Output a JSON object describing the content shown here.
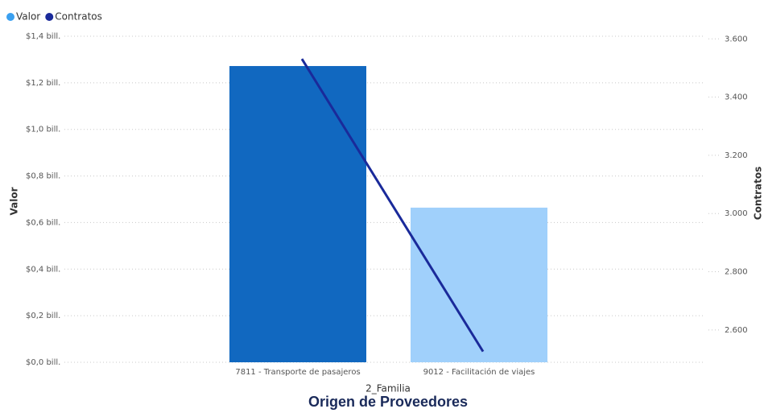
{
  "chart_data": {
    "type": "combo",
    "title": "Origen de Proveedores",
    "x_label": "2_Familia",
    "y_label": "Valor",
    "y2_label": "Contratos",
    "categories": [
      "7811 - Transporte de pasajeros",
      "9012 - Facilitación de viajes"
    ],
    "series": [
      {
        "name": "Valor",
        "type": "bar",
        "color": "#3aa0f0",
        "colors": [
          "#1168c0",
          "#a0d0fb"
        ],
        "values": [
          1.272,
          0.664
        ]
      },
      {
        "name": "Contratos",
        "type": "line",
        "axis": "y2",
        "color": "#1a2a9a",
        "values": [
          3531,
          2526
        ]
      }
    ],
    "ylim": [
      0,
      1.4
    ],
    "yticks": [
      {
        "value": 0,
        "label": "$0,0 bill."
      },
      {
        "value": 0.2,
        "label": "$0,2 bill."
      },
      {
        "value": 0.4,
        "label": "$0,4 bill."
      },
      {
        "value": 0.6,
        "label": "$0,6 bill."
      },
      {
        "value": 0.8,
        "label": "$0,8 bill."
      },
      {
        "value": 1.0,
        "label": "$1,0 bill."
      },
      {
        "value": 1.2,
        "label": "$1,2 bill."
      },
      {
        "value": 1.4,
        "label": "$1,4 bill."
      }
    ],
    "y2lim": [
      2489,
      3609
    ],
    "y2ticks": [
      {
        "value": 2600,
        "label": "2.600"
      },
      {
        "value": 2800,
        "label": "2.800"
      },
      {
        "value": 3000,
        "label": "3.000"
      },
      {
        "value": 3200,
        "label": "3.200"
      },
      {
        "value": 3400,
        "label": "3.400"
      },
      {
        "value": 3600,
        "label": "3.600"
      }
    ],
    "grid": true
  }
}
